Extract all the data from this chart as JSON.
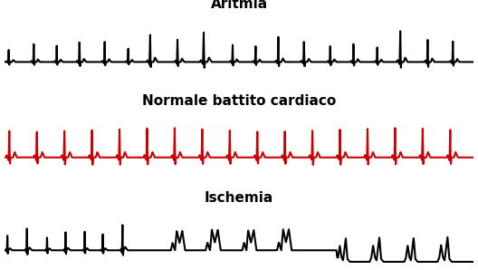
{
  "title_aritmia": "Aritmia",
  "title_normale": "Normale battito cardiaco",
  "title_ischemia": "Ischemia",
  "color_aritmia": "#000000",
  "color_normale": "#cc0000",
  "color_ischemia": "#000000",
  "title_fontsize": 11,
  "title_fontweight": "bold",
  "bg_color": "#ffffff",
  "linewidth": 1.5
}
